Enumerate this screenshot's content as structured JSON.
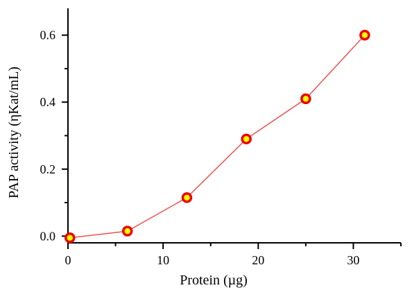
{
  "chart_data": {
    "type": "line",
    "xlabel": "Protein (µg)",
    "ylabel": "PAP activity (ηKat/mL)",
    "xlim": [
      0,
      35
    ],
    "ylim": [
      -0.02,
      0.68
    ],
    "x_ticks": [
      0,
      10,
      20,
      30
    ],
    "x_minor_ticks": [
      5,
      15,
      25,
      35
    ],
    "y_ticks": [
      0.0,
      0.2,
      0.4,
      0.6
    ],
    "y_minor_ticks": [
      0.1,
      0.3,
      0.5
    ],
    "x_tick_labels": [
      "0",
      "10",
      "20",
      "30"
    ],
    "y_tick_labels": [
      "0.0",
      "0.2",
      "0.4",
      "0.6"
    ],
    "grid": false,
    "series": [
      {
        "x": [
          0.2,
          6.25,
          12.5,
          18.75,
          25.0,
          31.2
        ],
        "y": [
          -0.005,
          0.015,
          0.115,
          0.29,
          0.41,
          0.6
        ],
        "line_color": "#f05050",
        "marker_fill": "#ffff00",
        "marker_edge": "#ee0000"
      }
    ]
  }
}
